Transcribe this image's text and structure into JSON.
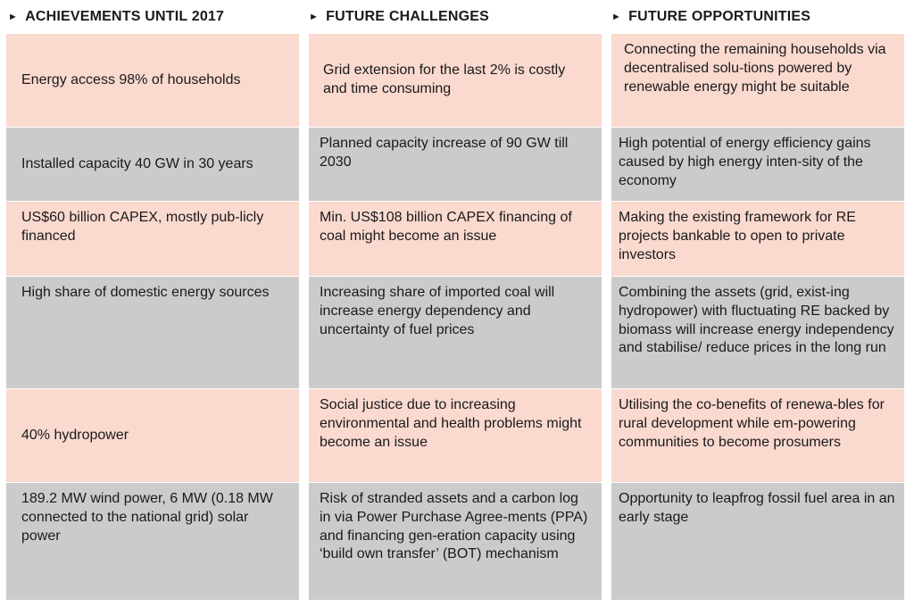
{
  "columns": [
    {
      "header": "ACHIEVEMENTS UNTIL 2017",
      "cells": [
        "Energy access 98% of households",
        "Installed capacity 40 GW in 30 years",
        "US$60 billion CAPEX, mostly pub-licly financed",
        "High share of domestic energy sources",
        "40% hydropower",
        "189.2 MW wind power, 6 MW (0.18 MW connected to the national grid) solar power"
      ]
    },
    {
      "header": "FUTURE CHALLENGES",
      "cells": [
        "Grid extension for the last 2% is costly and time consuming",
        "Planned capacity increase of 90 GW till 2030",
        "Min. US$108 billion CAPEX financing of coal might become an issue",
        "Increasing share of imported coal will increase energy dependency and uncertainty of fuel prices",
        "Social justice due to increasing environmental and health problems might become an issue",
        "Risk of stranded assets and a carbon log in via Power Purchase Agree-ments (PPA) and financing gen-eration capacity using ‘build own transfer’ (BOT) mechanism"
      ]
    },
    {
      "header": "FUTURE OPPORTUNITIES",
      "cells": [
        "Connecting the remaining households via decentralised solu-tions powered by renewable energy might be suitable",
        "High potential of energy efficiency gains caused by high energy inten-sity of the economy",
        "Making the existing framework for RE projects bankable to open to private investors",
        "Combining the assets (grid, exist-ing hydropower) with fluctuating RE backed by biomass will increase energy independency and stabilise/ reduce prices in the long run",
        "Utilising the co-benefits of renewa-bles for rural development while em-powering communities to become prosumers",
        "Opportunity to leapfrog fossil fuel area in an early stage"
      ]
    }
  ]
}
